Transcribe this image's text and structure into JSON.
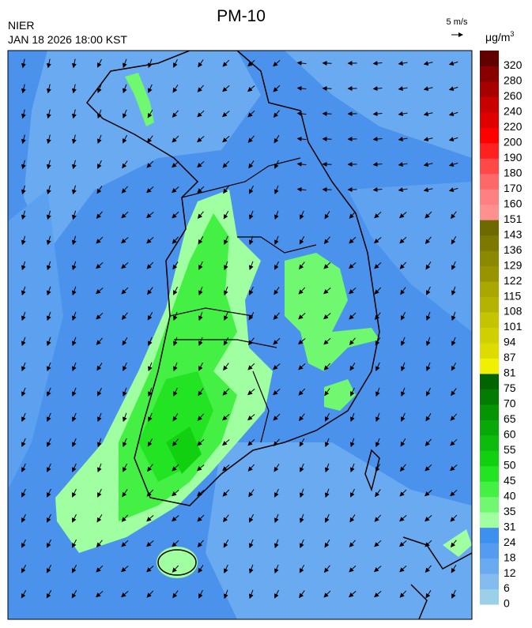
{
  "header": {
    "title": "PM-10",
    "agency": "NIER",
    "datetime": "JAN 18 2026 18:00 KST",
    "wind_scale": "5 m/s",
    "unit": "μg/m",
    "unit_power": "3"
  },
  "colorbar": {
    "ticks": [
      0,
      6,
      12,
      18,
      24,
      31,
      35,
      40,
      45,
      50,
      55,
      60,
      65,
      70,
      75,
      81,
      87,
      94,
      101,
      108,
      115,
      122,
      129,
      136,
      143,
      151,
      160,
      170,
      180,
      190,
      200,
      220,
      240,
      260,
      280,
      320
    ],
    "colors": [
      "#9ccfe8",
      "#84bcf0",
      "#6aaaf0",
      "#559cf0",
      "#3d8ff0",
      "#a0ffa0",
      "#70f870",
      "#44f044",
      "#22e422",
      "#10d010",
      "#0cbc0c",
      "#08a808",
      "#049404",
      "#047c04",
      "#006400",
      "#f0f000",
      "#dcdc00",
      "#d0d000",
      "#c4c400",
      "#b4b400",
      "#a8a800",
      "#989400",
      "#8c8800",
      "#7c7800",
      "#6e6a00",
      "#ff9090",
      "#ff8080",
      "#ff6868",
      "#ff4848",
      "#ff2020",
      "#ff0000",
      "#e00000",
      "#c80000",
      "#a80000",
      "#880000",
      "#600000"
    ]
  }
}
